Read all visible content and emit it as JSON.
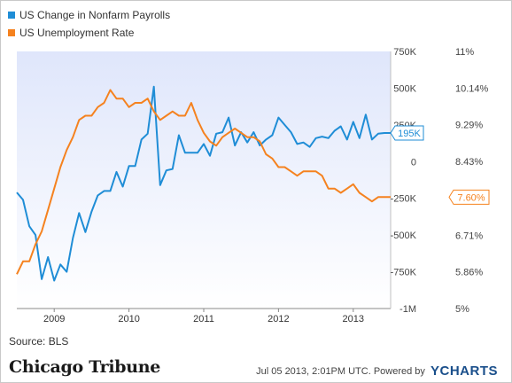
{
  "chart_data": {
    "type": "line",
    "source": "Source: BLS",
    "x_ticks": [
      "2009",
      "2010",
      "2011",
      "2012",
      "2013"
    ],
    "x_range": [
      2008.5,
      2013.5
    ],
    "y_left": {
      "ticks": [
        "750K",
        "500K",
        "250K",
        "0",
        "-250K",
        "-500K",
        "-750K",
        "-1M"
      ],
      "range": [
        -1000,
        750
      ]
    },
    "y_right": {
      "ticks": [
        "11%",
        "10.14%",
        "9.29%",
        "8.43%",
        "7.60%",
        "6.71%",
        "5.86%",
        "5%"
      ],
      "range": [
        5,
        11
      ]
    },
    "series": [
      {
        "name": "US Change in Nonfarm Payrolls",
        "color": "#1f8dd6",
        "axis": "left",
        "callout": "195K",
        "x": [
          2008.5,
          2008.583,
          2008.667,
          2008.75,
          2008.833,
          2008.917,
          2009.0,
          2009.083,
          2009.167,
          2009.25,
          2009.333,
          2009.417,
          2009.5,
          2009.583,
          2009.667,
          2009.75,
          2009.833,
          2009.917,
          2010.0,
          2010.083,
          2010.167,
          2010.25,
          2010.333,
          2010.417,
          2010.5,
          2010.583,
          2010.667,
          2010.75,
          2010.833,
          2010.917,
          2011.0,
          2011.083,
          2011.167,
          2011.25,
          2011.333,
          2011.417,
          2011.5,
          2011.583,
          2011.667,
          2011.75,
          2011.833,
          2011.917,
          2012.0,
          2012.083,
          2012.167,
          2012.25,
          2012.333,
          2012.417,
          2012.5,
          2012.583,
          2012.667,
          2012.75,
          2012.833,
          2012.917,
          2013.0,
          2013.083,
          2013.167,
          2013.25,
          2013.333,
          2013.417,
          2013.5
        ],
        "y": [
          -210,
          -260,
          -440,
          -500,
          -800,
          -650,
          -810,
          -700,
          -750,
          -520,
          -350,
          -480,
          -340,
          -230,
          -200,
          -200,
          -70,
          -170,
          -30,
          -30,
          150,
          190,
          510,
          -160,
          -60,
          -50,
          180,
          60,
          60,
          60,
          120,
          40,
          190,
          200,
          300,
          110,
          200,
          130,
          200,
          110,
          150,
          180,
          300,
          250,
          200,
          120,
          130,
          100,
          160,
          170,
          160,
          210,
          240,
          150,
          270,
          160,
          320,
          150,
          190,
          195,
          195
        ]
      },
      {
        "name": "US Unemployment Rate",
        "color": "#f5821f",
        "axis": "right",
        "callout": "7.60%",
        "x": [
          2008.5,
          2008.583,
          2008.667,
          2008.75,
          2008.833,
          2008.917,
          2009.0,
          2009.083,
          2009.167,
          2009.25,
          2009.333,
          2009.417,
          2009.5,
          2009.583,
          2009.667,
          2009.75,
          2009.833,
          2009.917,
          2010.0,
          2010.083,
          2010.167,
          2010.25,
          2010.333,
          2010.417,
          2010.5,
          2010.583,
          2010.667,
          2010.75,
          2010.833,
          2010.917,
          2011.0,
          2011.083,
          2011.167,
          2011.25,
          2011.333,
          2011.417,
          2011.5,
          2011.583,
          2011.667,
          2011.75,
          2011.833,
          2011.917,
          2012.0,
          2012.083,
          2012.167,
          2012.25,
          2012.333,
          2012.417,
          2012.5,
          2012.583,
          2012.667,
          2012.75,
          2012.833,
          2012.917,
          2013.0,
          2013.083,
          2013.167,
          2013.25,
          2013.333,
          2013.417,
          2013.5
        ],
        "y": [
          5.8,
          6.1,
          6.1,
          6.5,
          6.8,
          7.3,
          7.8,
          8.3,
          8.7,
          9.0,
          9.4,
          9.5,
          9.5,
          9.7,
          9.8,
          10.1,
          9.9,
          9.9,
          9.7,
          9.8,
          9.8,
          9.9,
          9.6,
          9.4,
          9.5,
          9.6,
          9.5,
          9.5,
          9.8,
          9.4,
          9.1,
          8.9,
          8.8,
          9.0,
          9.1,
          9.2,
          9.1,
          9.0,
          9.0,
          8.9,
          8.6,
          8.5,
          8.3,
          8.3,
          8.2,
          8.1,
          8.2,
          8.2,
          8.2,
          8.1,
          7.8,
          7.8,
          7.7,
          7.8,
          7.9,
          7.7,
          7.6,
          7.5,
          7.6,
          7.6,
          7.6
        ]
      }
    ],
    "grid": false,
    "legend_position": "top-left"
  },
  "footer": {
    "brand": "Chicago Tribune",
    "timestamp": "Jul 05 2013, 2:01PM UTC.  Powered by",
    "powered_logo": "YCHARTS"
  }
}
